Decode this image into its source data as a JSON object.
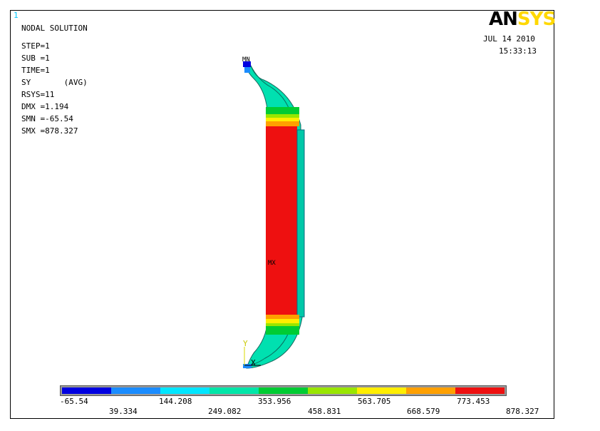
{
  "window_number": "1",
  "info_lines": [
    "NODAL SOLUTION",
    "STEP=1",
    "SUB =1",
    "TIME=1",
    "SY       (AVG)",
    "RSYS=11",
    "DMX =1.194",
    "SMN =-65.54",
    "SMX =878.327"
  ],
  "logo": {
    "part1": "AN",
    "part2": "SYS"
  },
  "date": "JUL 14 2010",
  "time": "15:33:13",
  "markers": {
    "min": "MN",
    "max": "MX"
  },
  "axis": {
    "y": "Y",
    "x": "X"
  },
  "legend": {
    "colors": [
      "#0000e0",
      "#1a8cff",
      "#00e6ff",
      "#00e6a8",
      "#00cc33",
      "#99e600",
      "#ffee00",
      "#ffa000",
      "#ee1010"
    ],
    "labels_top": [
      "-65.54",
      "144.208",
      "353.956",
      "563.705",
      "773.453"
    ],
    "labels_bottom": [
      "39.334",
      "249.082",
      "458.831",
      "668.579",
      "878.327"
    ]
  }
}
